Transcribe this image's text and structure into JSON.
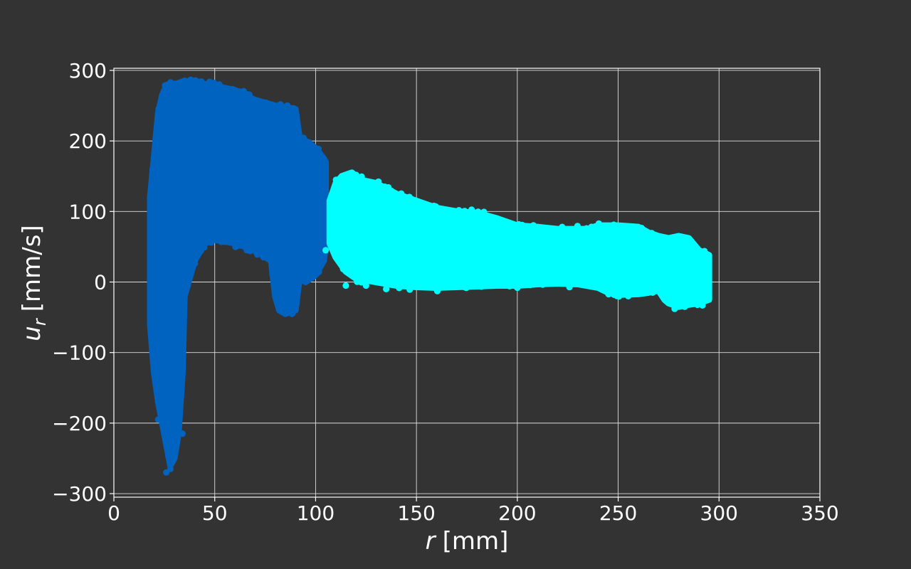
{
  "chart_data": {
    "type": "scatter",
    "title": "",
    "xlabel": {
      "var": "r",
      "unit": "[mm]"
    },
    "ylabel": {
      "var": "u",
      "sub": "r",
      "unit": "[mm/s]"
    },
    "xlim": [
      0,
      350
    ],
    "ylim": [
      -305,
      303
    ],
    "xticks": [
      0,
      50,
      100,
      150,
      200,
      250,
      300,
      350
    ],
    "xtick_labels": [
      "0",
      "50",
      "100",
      "150",
      "200",
      "250",
      "300",
      "350"
    ],
    "yticks": [
      -300,
      -200,
      -100,
      0,
      100,
      200,
      300
    ],
    "ytick_labels": [
      "−300",
      "−200",
      "−100",
      "0",
      "100",
      "200",
      "300"
    ],
    "grid": true,
    "legend": "none",
    "series": [
      {
        "color": "#0063C0",
        "upper": [
          [
            18,
            120
          ],
          [
            20,
            180
          ],
          [
            22,
            240
          ],
          [
            24,
            265
          ],
          [
            26,
            278
          ],
          [
            30,
            280
          ],
          [
            35,
            285
          ],
          [
            40,
            283
          ],
          [
            50,
            278
          ],
          [
            60,
            272
          ],
          [
            70,
            258
          ],
          [
            80,
            250
          ],
          [
            85,
            248
          ],
          [
            90,
            245
          ],
          [
            92,
            205
          ],
          [
            95,
            200
          ],
          [
            100,
            190
          ],
          [
            104,
            175
          ],
          [
            105,
            170
          ]
        ],
        "lower": [
          [
            18,
            -60
          ],
          [
            20,
            -130
          ],
          [
            22,
            -170
          ],
          [
            24,
            -200
          ],
          [
            26,
            -230
          ],
          [
            28,
            -260
          ],
          [
            30,
            -250
          ],
          [
            32,
            -215
          ],
          [
            34,
            -130
          ],
          [
            35,
            -20
          ],
          [
            40,
            30
          ],
          [
            45,
            55
          ],
          [
            50,
            60
          ],
          [
            60,
            55
          ],
          [
            70,
            45
          ],
          [
            78,
            30
          ],
          [
            80,
            -20
          ],
          [
            82,
            -40
          ],
          [
            85,
            -45
          ],
          [
            90,
            -40
          ],
          [
            92,
            5
          ],
          [
            95,
            0
          ],
          [
            100,
            10
          ],
          [
            104,
            30
          ],
          [
            105,
            50
          ]
        ],
        "outliers": [
          [
            22,
            -195
          ],
          [
            24,
            -200
          ],
          [
            25,
            -215
          ],
          [
            26,
            -270
          ],
          [
            27,
            -245
          ],
          [
            28,
            -265
          ],
          [
            29,
            -240
          ],
          [
            30,
            -205
          ],
          [
            32,
            -195
          ],
          [
            34,
            -215
          ],
          [
            33,
            -160
          ],
          [
            31,
            -180
          ],
          [
            23,
            -135
          ],
          [
            28,
            -150
          ],
          [
            42,
            50
          ],
          [
            38,
            10
          ],
          [
            36,
            -5
          ]
        ]
      },
      {
        "color": "#00FFFF",
        "upper": [
          [
            107,
            115
          ],
          [
            110,
            140
          ],
          [
            113,
            150
          ],
          [
            118,
            155
          ],
          [
            122,
            145
          ],
          [
            130,
            140
          ],
          [
            140,
            125
          ],
          [
            150,
            115
          ],
          [
            160,
            105
          ],
          [
            170,
            100
          ],
          [
            180,
            98
          ],
          [
            190,
            90
          ],
          [
            200,
            80
          ],
          [
            210,
            78
          ],
          [
            220,
            75
          ],
          [
            235,
            75
          ],
          [
            240,
            80
          ],
          [
            250,
            80
          ],
          [
            260,
            78
          ],
          [
            265,
            70
          ],
          [
            270,
            65
          ],
          [
            275,
            62
          ],
          [
            280,
            65
          ],
          [
            285,
            62
          ],
          [
            290,
            45
          ],
          [
            295,
            38
          ]
        ],
        "lower": [
          [
            107,
            55
          ],
          [
            110,
            35
          ],
          [
            115,
            15
          ],
          [
            120,
            5
          ],
          [
            130,
            0
          ],
          [
            140,
            -5
          ],
          [
            150,
            -7
          ],
          [
            160,
            -8
          ],
          [
            170,
            -7
          ],
          [
            180,
            -6
          ],
          [
            190,
            -5
          ],
          [
            200,
            -5
          ],
          [
            210,
            -3
          ],
          [
            220,
            -2
          ],
          [
            230,
            -3
          ],
          [
            240,
            -8
          ],
          [
            245,
            -15
          ],
          [
            250,
            -18
          ],
          [
            260,
            -17
          ],
          [
            265,
            -15
          ],
          [
            270,
            -12
          ],
          [
            273,
            -25
          ],
          [
            275,
            -30
          ],
          [
            280,
            -35
          ],
          [
            285,
            -32
          ],
          [
            290,
            -30
          ],
          [
            295,
            -25
          ]
        ],
        "outliers": [
          [
            105,
            45
          ],
          [
            108,
            60
          ],
          [
            115,
            -5
          ],
          [
            125,
            -5
          ],
          [
            135,
            -10
          ],
          [
            160,
            -10
          ],
          [
            200,
            -8
          ],
          [
            255,
            -20
          ],
          [
            278,
            -38
          ],
          [
            283,
            -35
          ]
        ]
      }
    ]
  }
}
